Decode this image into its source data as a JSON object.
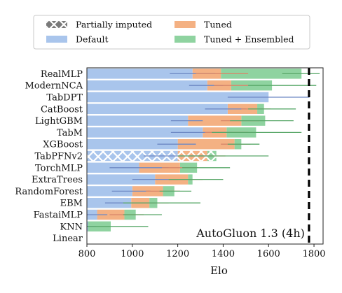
{
  "chart_data": {
    "type": "bar",
    "orientation": "horizontal",
    "xlabel": "Elo",
    "xlim": [
      800,
      1840
    ],
    "xticks": [
      800,
      1000,
      1200,
      1400,
      1600,
      1800
    ],
    "legend": {
      "position": "top",
      "entries": [
        {
          "label": "Partially imputed",
          "style": "hatch"
        },
        {
          "label": "Tuned",
          "color": "#f4b183"
        },
        {
          "label": "Default",
          "color": "#a9c5ec"
        },
        {
          "label": "Tuned + Ensembled",
          "color": "#8fd3a0"
        }
      ]
    },
    "reference_line": {
      "label": "AutoGluon 1.3 (4h)",
      "value": 1778
    },
    "colors": {
      "default": "#a9c5ec",
      "default_err": "#6e89c4",
      "tuned": "#f4b183",
      "tuned_err": "#d7876a",
      "ensembled": "#8fd3a0",
      "ensembled_err": "#5aa86a"
    },
    "models": [
      {
        "name": "RealMLP",
        "default": 1265,
        "default_ci": [
          1165,
          1365
        ],
        "tuned": 1390,
        "tuned_ci": [
          1280,
          1510
        ],
        "ensembled": 1745,
        "ens_ci": [
          1660,
          1825
        ]
      },
      {
        "name": "ModernNCA",
        "default": 1330,
        "default_ci": [
          1250,
          1400
        ],
        "tuned": 1435,
        "tuned_ci": [
          1360,
          1510
        ],
        "ensembled": 1615,
        "ens_ci": [
          1510,
          1810
        ]
      },
      {
        "name": "TabDPT",
        "default": 1600,
        "default_ci": [
          1420,
          1780
        ]
      },
      {
        "name": "CatBoost",
        "default": 1420,
        "default_ci": [
          1320,
          1500
        ],
        "tuned": 1550,
        "tuned_ci": [
          1480,
          1610
        ],
        "ensembled": 1580,
        "ens_ci": [
          1510,
          1720
        ]
      },
      {
        "name": "LightGBM",
        "default": 1245,
        "default_ci": [
          1170,
          1310
        ],
        "tuned": 1480,
        "tuned_ci": [
          1390,
          1560
        ],
        "ensembled": 1585,
        "ens_ci": [
          1430,
          1710
        ]
      },
      {
        "name": "TabM",
        "default": 1310,
        "default_ci": [
          1170,
          1440
        ],
        "tuned": 1415,
        "tuned_ci": [
          1320,
          1510
        ],
        "ensembled": 1545,
        "ens_ci": [
          1350,
          1745
        ]
      },
      {
        "name": "XGBoost",
        "default": 1200,
        "default_ci": [
          1110,
          1280
        ],
        "tuned": 1450,
        "tuned_ci": [
          1390,
          1520
        ],
        "ensembled": 1480,
        "ens_ci": [
          1420,
          1560
        ]
      },
      {
        "name": "TabPFNv2",
        "default": 1200,
        "default_ci": [
          1050,
          1350
        ],
        "tuned": 1330,
        "tuned_ci": [
          1260,
          1410
        ],
        "ensembled": 1370,
        "ens_ci": [
          1200,
          1600
        ],
        "partially_imputed": true
      },
      {
        "name": "TorchMLP",
        "default": 1030,
        "default_ci": [
          900,
          1160
        ],
        "tuned": 1210,
        "tuned_ci": [
          1130,
          1290
        ],
        "ensembled": 1285,
        "ens_ci": [
          1220,
          1430
        ]
      },
      {
        "name": "ExtraTrees",
        "default": 1100,
        "default_ci": [
          1000,
          1200
        ],
        "tuned": 1245,
        "tuned_ci": [
          1170,
          1310
        ],
        "ensembled": 1265,
        "ens_ci": [
          1160,
          1400
        ]
      },
      {
        "name": "RandomForest",
        "default": 1000,
        "default_ci": [
          910,
          1080
        ],
        "tuned": 1135,
        "tuned_ci": [
          1060,
          1210
        ],
        "ensembled": 1185,
        "ens_ci": [
          1120,
          1260
        ]
      },
      {
        "name": "EBM",
        "default": 995,
        "default_ci": [
          880,
          1100
        ],
        "tuned": 1075,
        "tuned_ci": [
          1000,
          1160
        ],
        "ensembled": 1110,
        "ens_ci": [
          960,
          1300
        ]
      },
      {
        "name": "FastaiMLP",
        "default": 845,
        "default_ci": [
          800,
          890
        ],
        "tuned": 965,
        "tuned_ci": [
          900,
          1050
        ],
        "ensembled": 1015,
        "ens_ci": [
          960,
          1130
        ]
      },
      {
        "name": "KNN",
        "default": 805,
        "default_ci": [
          800,
          840
        ],
        "ensembled": 905,
        "ens_ci": [
          800,
          1070
        ]
      },
      {
        "name": "Linear",
        "default": 800
      }
    ]
  }
}
